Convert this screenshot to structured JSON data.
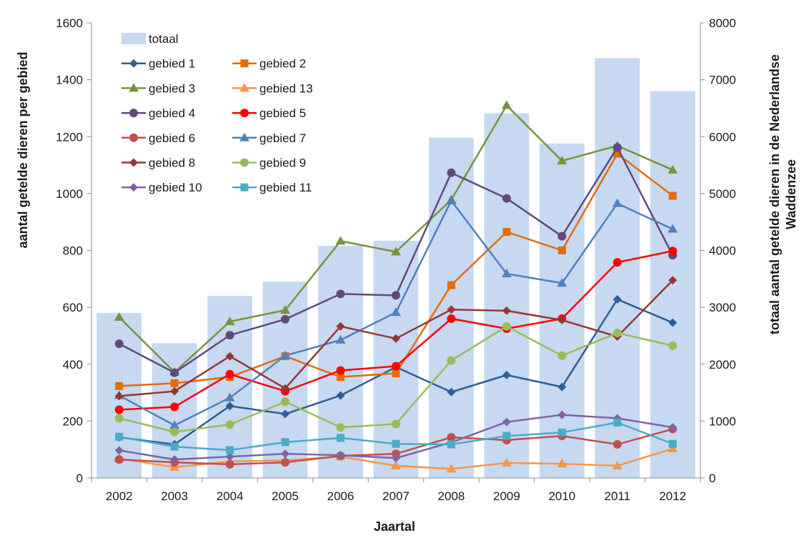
{
  "chart_data": {
    "type": "bar",
    "xlabel": "Jaartal",
    "ylabel": "aantal getelde dieren per gebied",
    "y2label_line1": "totaal aantal getelde dieren in de Nederlandse",
    "y2label_line2": "Waddenzee",
    "categories": [
      "2002",
      "2003",
      "2004",
      "2005",
      "2006",
      "2007",
      "2008",
      "2009",
      "2010",
      "2011",
      "2012"
    ],
    "ylim": [
      0,
      1600
    ],
    "yticks": [
      "0",
      "200",
      "400",
      "600",
      "800",
      "1000",
      "1200",
      "1400",
      "1600"
    ],
    "y2lim": [
      0,
      8000
    ],
    "y2ticks": [
      "0",
      "1000",
      "2000",
      "3000",
      "4000",
      "5000",
      "6000",
      "7000",
      "8000"
    ],
    "grid": false,
    "legend_position": "top-left",
    "total": {
      "name": "totaal",
      "color": "#c6d9f1",
      "values": [
        2900,
        2370,
        3200,
        3450,
        4080,
        4170,
        5980,
        6410,
        5880,
        7380,
        6800
      ]
    },
    "series": [
      {
        "name": "gebied 1",
        "color": "#2e5e95",
        "marker": "diamond",
        "values": [
          143,
          118,
          253,
          225,
          290,
          390,
          302,
          362,
          320,
          628,
          546
        ]
      },
      {
        "name": "gebied 2",
        "color": "#e46c0a",
        "marker": "square",
        "values": [
          323,
          333,
          355,
          428,
          355,
          368,
          678,
          865,
          800,
          1140,
          992
        ]
      },
      {
        "name": "gebied 3",
        "color": "#77933c",
        "marker": "triangle",
        "values": [
          565,
          372,
          550,
          590,
          833,
          795,
          978,
          1310,
          1115,
          1168,
          1083
        ]
      },
      {
        "name": "gebied 13",
        "color": "#f79646",
        "marker": "triangle",
        "values": [
          68,
          38,
          58,
          62,
          75,
          43,
          32,
          53,
          50,
          43,
          103
        ]
      },
      {
        "name": "gebied 4",
        "color": "#604a7b",
        "marker": "circle",
        "values": [
          472,
          370,
          502,
          558,
          647,
          642,
          1073,
          983,
          850,
          1162,
          783
        ]
      },
      {
        "name": "gebied 5",
        "color": "#ff0000",
        "marker": "circle",
        "values": [
          240,
          250,
          365,
          305,
          378,
          393,
          560,
          525,
          560,
          758,
          798
        ]
      },
      {
        "name": "gebied 6",
        "color": "#c0504d",
        "marker": "circle",
        "values": [
          65,
          55,
          48,
          55,
          78,
          85,
          143,
          133,
          148,
          118,
          172
        ]
      },
      {
        "name": "gebied 7",
        "color": "#4f81bd",
        "marker": "triangle",
        "values": [
          290,
          185,
          282,
          430,
          485,
          582,
          975,
          718,
          685,
          965,
          875
        ]
      },
      {
        "name": "gebied 8",
        "color": "#953735",
        "marker": "diamond",
        "values": [
          288,
          305,
          428,
          315,
          533,
          490,
          592,
          588,
          555,
          497,
          695
        ]
      },
      {
        "name": "gebied 9",
        "color": "#9bbb59",
        "marker": "circle",
        "values": [
          210,
          162,
          188,
          268,
          178,
          190,
          413,
          533,
          430,
          510,
          465
        ]
      },
      {
        "name": "gebied 10",
        "color": "#8064a2",
        "marker": "diamond",
        "values": [
          97,
          65,
          75,
          85,
          80,
          70,
          125,
          197,
          222,
          210,
          178
        ]
      },
      {
        "name": "gebied 11",
        "color": "#4bacc6",
        "marker": "square",
        "values": [
          145,
          110,
          98,
          126,
          141,
          120,
          118,
          148,
          160,
          195,
          120
        ]
      }
    ],
    "legend_order": [
      "totaal",
      "gebied 1",
      "gebied 2",
      "gebied 3",
      "gebied 13",
      "gebied 4",
      "gebied 5",
      "gebied 6",
      "gebied 7",
      "gebied 8",
      "gebied 9",
      "gebied 10",
      "gebied 11"
    ]
  }
}
